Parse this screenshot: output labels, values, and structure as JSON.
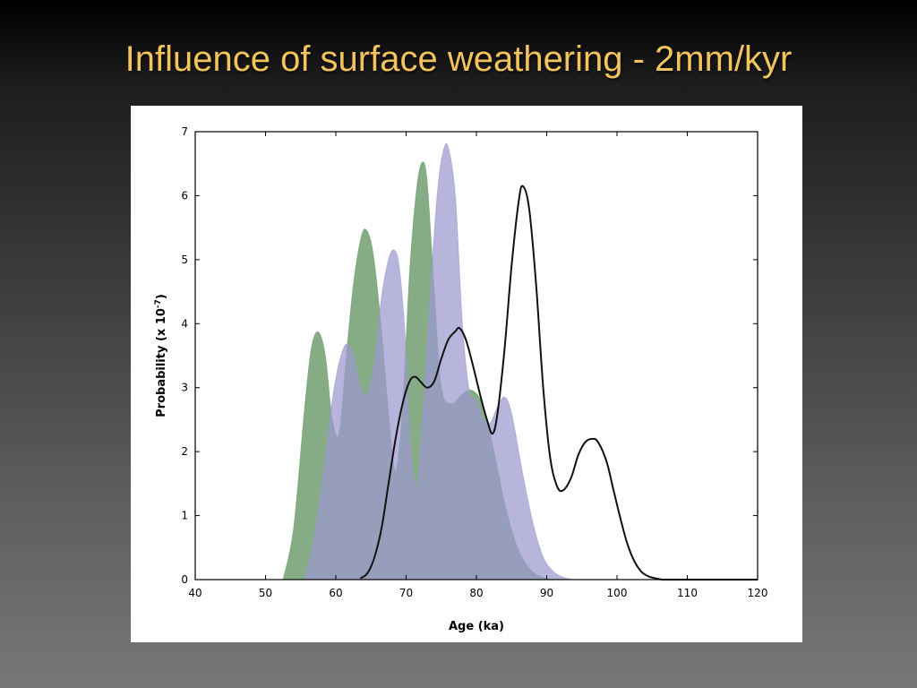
{
  "slide": {
    "title": "Influence of surface weathering - 2mm/kyr"
  },
  "chart_data": {
    "type": "area",
    "xlabel": "Age (ka)",
    "ylabel_main": "Probability (x 10",
    "ylabel_exp": "-7",
    "ylabel_close": ")",
    "xlim": [
      40,
      120
    ],
    "ylim": [
      0,
      7
    ],
    "xticks": [
      40,
      50,
      60,
      70,
      80,
      90,
      100,
      110,
      120
    ],
    "yticks": [
      0,
      1,
      2,
      3,
      4,
      5,
      6,
      7
    ],
    "grid": false,
    "colors": {
      "green": "#6b9a6b",
      "purple": "#9d98d0",
      "black": "#111111"
    },
    "series": [
      {
        "style": "filled-green",
        "x": [
          52.5,
          54,
          55.5,
          56.5,
          57.5,
          58.5,
          59.5,
          60.5,
          61.5,
          62.5,
          63.5,
          64.3,
          65.3,
          66.5,
          67.5,
          68.5,
          69.5,
          70.5,
          71.5,
          72.3,
          73,
          74,
          75,
          76.5,
          78,
          79.5,
          81,
          82.5,
          84,
          85.5,
          87,
          88.5,
          90,
          91.5,
          92.5
        ],
        "y": [
          0,
          0.8,
          2.6,
          3.6,
          3.87,
          3.5,
          2.5,
          2.3,
          3.5,
          4.6,
          5.3,
          5.47,
          5.1,
          3.9,
          2.6,
          1.7,
          2.7,
          4.8,
          6.1,
          6.52,
          6.2,
          4.5,
          3.0,
          2.75,
          2.9,
          2.95,
          2.7,
          2.0,
          1.2,
          0.6,
          0.25,
          0.08,
          0.02,
          0,
          0
        ]
      },
      {
        "style": "filled-purple",
        "x": [
          55.5,
          57,
          58.5,
          59.5,
          60.5,
          61.5,
          62.5,
          63.5,
          64.5,
          65.5,
          66.5,
          67.5,
          68.3,
          69,
          69.8,
          70.5,
          71.5,
          72.5,
          73.5,
          74.5,
          75.3,
          76,
          77,
          78,
          79,
          80,
          81,
          82,
          83,
          84,
          85,
          86.5,
          88,
          89.5,
          91,
          92.5,
          94,
          96
        ],
        "y": [
          0,
          0.7,
          1.9,
          2.8,
          3.4,
          3.68,
          3.5,
          3.0,
          2.9,
          3.4,
          4.4,
          5.0,
          5.15,
          4.9,
          3.9,
          2.3,
          1.45,
          2.8,
          4.6,
          6.1,
          6.7,
          6.75,
          6.0,
          4.0,
          2.95,
          2.8,
          2.5,
          2.45,
          2.7,
          2.85,
          2.6,
          1.7,
          0.9,
          0.35,
          0.12,
          0.03,
          0,
          0
        ]
      },
      {
        "style": "line-black",
        "x": [
          63.5,
          64.5,
          65.5,
          66.5,
          67.5,
          68.5,
          69.5,
          70.5,
          71.3,
          72,
          73,
          74,
          75,
          76,
          77,
          77.6,
          78.5,
          79.5,
          80.5,
          81.5,
          82.3,
          83,
          84,
          85,
          86,
          86.6,
          87.5,
          88.5,
          89.5,
          90.5,
          91.5,
          92.4,
          93.5,
          94.5,
          95.5,
          96.5,
          97.3,
          98.5,
          99.5,
          100.5,
          101.5,
          102.5,
          103.5,
          104.5,
          105.5,
          106.5,
          108,
          110,
          120
        ],
        "y": [
          0.02,
          0.1,
          0.35,
          0.8,
          1.5,
          2.2,
          2.75,
          3.1,
          3.17,
          3.1,
          3.0,
          3.1,
          3.45,
          3.75,
          3.88,
          3.93,
          3.75,
          3.35,
          2.9,
          2.5,
          2.28,
          2.6,
          3.6,
          4.9,
          5.9,
          6.15,
          5.8,
          4.6,
          3.0,
          1.9,
          1.45,
          1.4,
          1.6,
          1.95,
          2.15,
          2.2,
          2.15,
          1.85,
          1.4,
          0.95,
          0.55,
          0.28,
          0.12,
          0.05,
          0.02,
          0,
          0,
          0,
          0
        ]
      }
    ]
  }
}
